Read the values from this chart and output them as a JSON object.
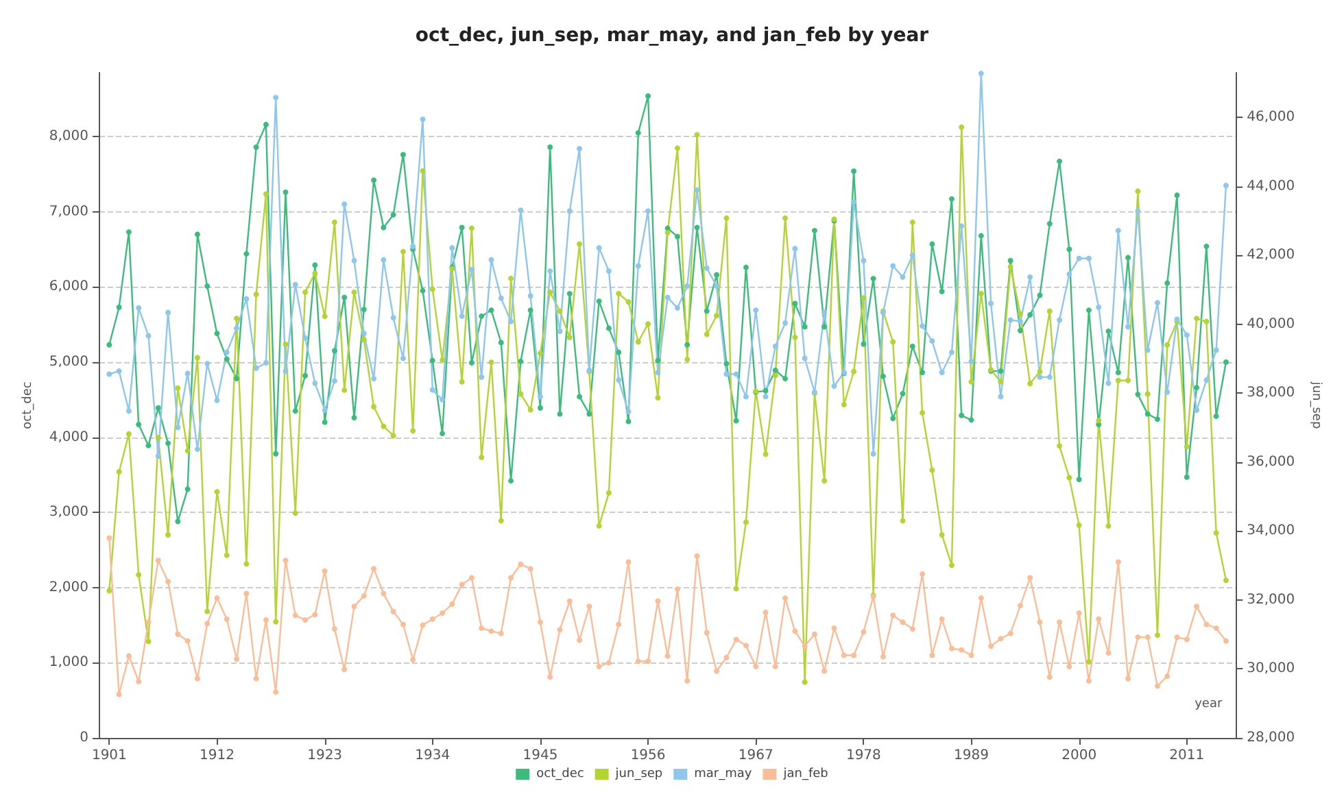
{
  "chart_data": {
    "type": "line",
    "title": "oct_dec, jun_sep, mar_may, and jan_feb by year",
    "xlabel": "year",
    "ylabel": "oct_dec",
    "y2label": "jun_sep",
    "x": [
      1901,
      1902,
      1903,
      1904,
      1905,
      1906,
      1907,
      1908,
      1909,
      1910,
      1911,
      1912,
      1913,
      1914,
      1915,
      1916,
      1917,
      1918,
      1919,
      1920,
      1921,
      1922,
      1923,
      1924,
      1925,
      1926,
      1927,
      1928,
      1929,
      1930,
      1931,
      1932,
      1933,
      1934,
      1935,
      1936,
      1937,
      1938,
      1939,
      1940,
      1941,
      1942,
      1943,
      1944,
      1945,
      1946,
      1947,
      1948,
      1949,
      1950,
      1951,
      1952,
      1953,
      1954,
      1955,
      1956,
      1957,
      1958,
      1959,
      1960,
      1961,
      1962,
      1963,
      1964,
      1965,
      1966,
      1967,
      1968,
      1969,
      1970,
      1971,
      1972,
      1973,
      1974,
      1975,
      1976,
      1977,
      1978,
      1979,
      1980,
      1981,
      1982,
      1983,
      1984,
      1985,
      1986,
      1987,
      1988,
      1989,
      1990,
      1991,
      1992,
      1993,
      1994,
      1995,
      1996,
      1997,
      1998,
      1999,
      2000,
      2001,
      2002,
      2003,
      2004,
      2005,
      2006,
      2007,
      2008,
      2009,
      2010,
      2011,
      2012,
      2013,
      2014,
      2015
    ],
    "series": [
      {
        "name": "oct_dec",
        "color": "#3dbb7c",
        "values": [
          5230,
          5730,
          6730,
          4170,
          3890,
          4390,
          3920,
          2880,
          3310,
          6700,
          6010,
          5380,
          5040,
          4780,
          6440,
          7860,
          8160,
          3780,
          7260,
          4350,
          4820,
          6290,
          4200,
          5150,
          5860,
          4260,
          5700,
          7420,
          6790,
          6960,
          7760,
          6500,
          5950,
          5020,
          4050,
          6260,
          6790,
          4990,
          5610,
          5690,
          5260,
          3420,
          5010,
          5690,
          4390,
          7860,
          4310,
          5910,
          4540,
          4310,
          5810,
          5450,
          5130,
          4210,
          8050,
          8540,
          5020,
          6780,
          6670,
          5230,
          6790,
          5680,
          6160,
          4980,
          4220,
          6260,
          4600,
          4620,
          4890,
          4780,
          5780,
          5470,
          6750,
          5470,
          6880,
          4850,
          7540,
          5240,
          6110,
          4810,
          4250,
          4580,
          5210,
          4860,
          6570,
          5940,
          7170,
          4290,
          4230,
          6680,
          4880,
          4880,
          6350,
          5420,
          5630,
          5890,
          6840,
          7670,
          6500,
          3440,
          5690,
          4170,
          5410,
          4860,
          6390,
          4570,
          4310,
          4240,
          6050,
          7220,
          3470,
          4660,
          6540,
          4280,
          5000
        ]
      },
      {
        "name": "jun_sep",
        "color": "#b4d334",
        "axis": "y2",
        "values": [
          32270,
          35720,
          36820,
          32730,
          30800,
          36710,
          33890,
          38150,
          36330,
          39030,
          31670,
          35140,
          33300,
          40170,
          33050,
          40870,
          43780,
          31370,
          39420,
          34520,
          40930,
          41480,
          40230,
          42960,
          38090,
          40930,
          39550,
          37610,
          37040,
          36770,
          42110,
          36910,
          44450,
          41020,
          38960,
          41610,
          38330,
          42790,
          36140,
          38900,
          34300,
          41330,
          37980,
          37520,
          39160,
          40930,
          40380,
          39620,
          42330,
          38630,
          34150,
          35110,
          40890,
          40650,
          39490,
          40010,
          37870,
          42660,
          45110,
          38980,
          45500,
          39710,
          40250,
          43080,
          32330,
          34260,
          38060,
          36230,
          38520,
          43080,
          39620,
          29620,
          38000,
          35460,
          43050,
          37670,
          38630,
          40770,
          32140,
          40380,
          39490,
          34300,
          42960,
          37430,
          35770,
          33890,
          33010,
          45720,
          38330,
          40890,
          38680,
          38330,
          41670,
          40300,
          38280,
          38630,
          40380,
          36470,
          35550,
          34170,
          30210,
          37210,
          34150,
          38370,
          38370,
          43860,
          37980,
          30980,
          39400,
          40080,
          36450,
          40170,
          40080,
          33950,
          32570
        ]
      },
      {
        "name": "mar_may",
        "color": "#8ec6ec",
        "values": [
          4840,
          4880,
          4350,
          5720,
          5350,
          3750,
          5660,
          4130,
          4850,
          3840,
          4980,
          4490,
          5130,
          5450,
          5840,
          4920,
          4990,
          8520,
          4880,
          6030,
          5320,
          4720,
          4360,
          4750,
          7100,
          6350,
          5380,
          4780,
          6360,
          5590,
          5050,
          6540,
          8230,
          4630,
          4500,
          6520,
          5610,
          6230,
          4800,
          6360,
          5850,
          5540,
          7020,
          5880,
          4540,
          6210,
          5410,
          7010,
          7840,
          4890,
          6520,
          6210,
          4760,
          4340,
          6280,
          7010,
          4860,
          5860,
          5720,
          6010,
          7290,
          6250,
          6010,
          4840,
          4840,
          4540,
          5690,
          4540,
          5210,
          5520,
          6510,
          5050,
          4600,
          5660,
          4680,
          4860,
          7130,
          6350,
          3780,
          5660,
          6280,
          6130,
          6420,
          5480,
          5280,
          4860,
          5130,
          6810,
          5010,
          8840,
          5780,
          4540,
          5560,
          5540,
          6130,
          4800,
          4800,
          5560,
          6170,
          6380,
          6380,
          5730,
          4720,
          6750,
          5470,
          7010,
          5160,
          5790,
          4600,
          5570,
          5360,
          4360,
          4760,
          5160,
          7350
        ]
      },
      {
        "name": "jan_feb",
        "color": "#f9bd98",
        "values": [
          2660,
          580,
          1090,
          750,
          1540,
          2360,
          2080,
          1380,
          1290,
          790,
          1520,
          1860,
          1580,
          1050,
          1920,
          790,
          1570,
          610,
          2360,
          1630,
          1570,
          1640,
          2220,
          1450,
          910,
          1750,
          1890,
          2250,
          1920,
          1680,
          1510,
          1040,
          1500,
          1580,
          1660,
          1780,
          2040,
          2130,
          1460,
          1420,
          1390,
          2130,
          2310,
          2250,
          1540,
          810,
          1440,
          1820,
          1300,
          1750,
          950,
          1000,
          1510,
          2340,
          1020,
          1020,
          1820,
          1090,
          1980,
          760,
          2420,
          1400,
          890,
          1070,
          1310,
          1230,
          950,
          1670,
          950,
          1860,
          1420,
          1220,
          1380,
          890,
          1460,
          1100,
          1100,
          1410,
          1880,
          1080,
          1630,
          1540,
          1450,
          2180,
          1100,
          1580,
          1190,
          1170,
          1100,
          1860,
          1220,
          1320,
          1390,
          1760,
          2130,
          1540,
          810,
          1540,
          950,
          1660,
          760,
          1580,
          1130,
          2340,
          790,
          1340,
          1340,
          690,
          820,
          1340,
          1310,
          1750,
          1510,
          1460,
          1290
        ]
      }
    ],
    "xlim": [
      1900,
      2016
    ],
    "xticks": [
      1901,
      1912,
      1923,
      1934,
      1945,
      1956,
      1967,
      1978,
      1989,
      2000,
      2011
    ],
    "ylim": [
      0,
      8850
    ],
    "yticks": [
      0,
      {
        "value": 1000,
        "label": "1,000"
      },
      {
        "value": 2000,
        "label": "2,000"
      },
      {
        "value": 3000,
        "label": "3,000"
      },
      {
        "value": 4000,
        "label": "4,000"
      },
      {
        "value": 5000,
        "label": "5,000"
      },
      {
        "value": 6000,
        "label": "6,000"
      },
      {
        "value": 7000,
        "label": "7,000"
      },
      {
        "value": 8000,
        "label": "8,000"
      }
    ],
    "y2lim": [
      28000,
      47300
    ],
    "y2ticks": [
      {
        "value": 28000,
        "label": "28,000"
      },
      {
        "value": 30000,
        "label": "30,000"
      },
      {
        "value": 32000,
        "label": "32,000"
      },
      {
        "value": 34000,
        "label": "34,000"
      },
      {
        "value": 36000,
        "label": "36,000"
      },
      {
        "value": 38000,
        "label": "38,000"
      },
      {
        "value": 40000,
        "label": "40,000"
      },
      {
        "value": 42000,
        "label": "42,000"
      },
      {
        "value": 44000,
        "label": "44,000"
      },
      {
        "value": 46000,
        "label": "46,000"
      }
    ],
    "grid": "y",
    "legend": "bottom",
    "marker": "circle",
    "line_style": "solid"
  }
}
